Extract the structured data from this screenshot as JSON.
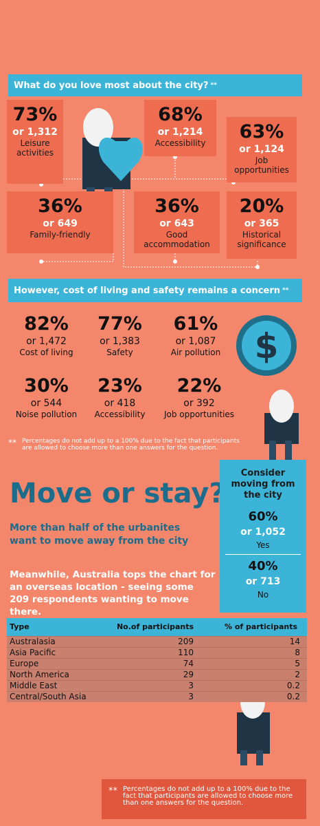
{
  "section_love": {
    "title": "What do you love most about the city?",
    "mark": "**",
    "items": [
      {
        "pct": "73%",
        "count": "or 1,312",
        "label": "Leisure activities"
      },
      {
        "pct": "68%",
        "count": "or 1,214",
        "label": "Accessibility"
      },
      {
        "pct": "63%",
        "count": "or 1,124",
        "label": "Job opportunities"
      },
      {
        "pct": "36%",
        "count": "or 649",
        "label": "Family-friendly"
      },
      {
        "pct": "36%",
        "count": "or 643",
        "label": "Good accommodation"
      },
      {
        "pct": "20%",
        "count": "or 365",
        "label": "Historical significance"
      }
    ]
  },
  "section_concern": {
    "title": "However, cost of living and safety remains a concern",
    "mark": "**",
    "items": [
      {
        "pct": "82%",
        "count": "or 1,472",
        "label": "Cost of living"
      },
      {
        "pct": "77%",
        "count": "or 1,383",
        "label": "Safety"
      },
      {
        "pct": "61%",
        "count": "or 1,087",
        "label": "Air pollution"
      },
      {
        "pct": "30%",
        "count": "or 544",
        "label": "Noise pollution"
      },
      {
        "pct": "23%",
        "count": "or 418",
        "label": "Accessibility"
      },
      {
        "pct": "22%",
        "count": "or 392",
        "label": "Job opportunities"
      }
    ],
    "note_mark": "**",
    "note": "Percentages do not add up to a 100% due to the fact that participants are allowed to choose more than one answers for the question."
  },
  "move": {
    "heading": "Move or stay?",
    "subheading": "More than half of the urbanites want to move away from the city",
    "paragraph": "Meanwhile, Australia tops the chart for an overseas location - seeing some 209 respondents wanting to move there."
  },
  "sidebar": {
    "title": "Consider moving from the city",
    "options": [
      {
        "pct": "60%",
        "count": "or 1,052",
        "label": "Yes"
      },
      {
        "pct": "40%",
        "count": "or 713",
        "label": "No"
      }
    ]
  },
  "table": {
    "headers": [
      "Type",
      "No.of participants",
      "% of participants"
    ],
    "rows": [
      [
        "Australasia",
        "209",
        "14"
      ],
      [
        "Asia Pacific",
        "110",
        "8"
      ],
      [
        "Europe",
        "74",
        "5"
      ],
      [
        "North America",
        "29",
        "2"
      ],
      [
        "Middle East",
        "3",
        "0.2"
      ],
      [
        "Central/South Asia",
        "3",
        "0.2"
      ]
    ]
  },
  "footnote": {
    "mark": "**",
    "text": "Percentages do not add up to a 100% due to the fact that participants are allowed to choose more than one answers for the question."
  }
}
